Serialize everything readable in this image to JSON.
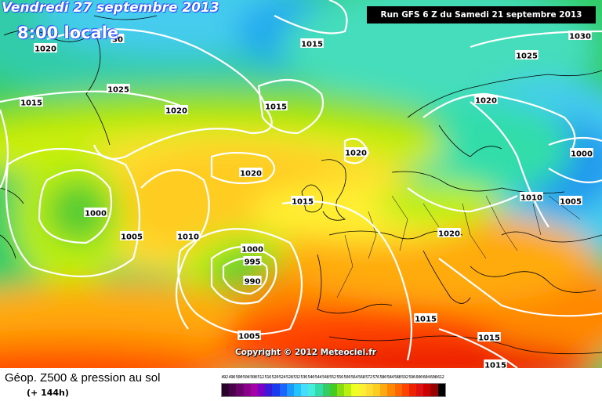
{
  "header": {
    "valid_date": "Vendredi 27 septembre 2013",
    "local_time": "8:00 locale",
    "run_info": "Run GFS 6 Z du Samedi 21 septembre 2013"
  },
  "map": {
    "copyright": "Copyright © 2012 Meteociel.fr",
    "isobar_labels": [
      "30",
      "1020",
      "1015",
      "1030",
      "1025",
      "1025",
      "1015",
      "1020",
      "1015",
      "1020",
      "1020",
      "1020",
      "1015",
      "1000",
      "1010",
      "1005",
      "1000",
      "1005",
      "1010",
      "1020",
      "1000",
      "995",
      "990",
      "1005",
      "1015",
      "1015",
      "1015"
    ]
  },
  "legend": {
    "title": "Géop. Z500 & pression au sol",
    "subtitle": "(+ 144h)",
    "scale_labels": [
      "492",
      "496",
      "500",
      "504",
      "508",
      "512",
      "516",
      "520",
      "524",
      "528",
      "532",
      "536",
      "540",
      "544",
      "548",
      "552",
      "556",
      "560",
      "564",
      "568",
      "572",
      "576",
      "580",
      "584",
      "588",
      "592",
      "596",
      "600",
      "604",
      "608",
      "612"
    ],
    "scale_colors": [
      "#2b002b",
      "#4b004b",
      "#6a006a",
      "#8a008a",
      "#a500a5",
      "#7a00c8",
      "#3a1ad8",
      "#1a3af0",
      "#1a66ff",
      "#1a99ff",
      "#22c4ff",
      "#44ddff",
      "#44eedd",
      "#33ddaa",
      "#33cc66",
      "#44cc22",
      "#88dd11",
      "#bbee11",
      "#eeff22",
      "#ffee33",
      "#ffdd33",
      "#ffcc22",
      "#ffaa11",
      "#ff8800",
      "#ff6600",
      "#ff4400",
      "#ee2200",
      "#dd1111",
      "#cc0000",
      "#990000",
      "#000000"
    ]
  }
}
